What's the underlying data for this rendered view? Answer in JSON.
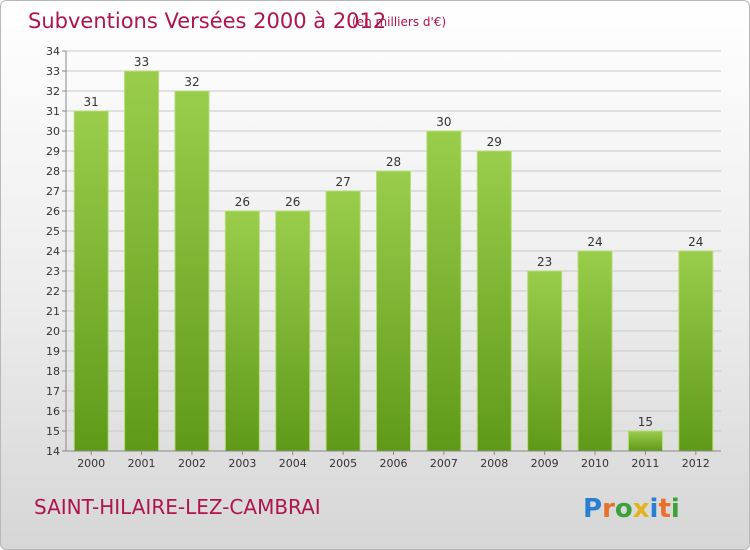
{
  "header": {
    "title": "Subventions Versées 2000 à 2012",
    "unit": "(en milliers d'€)"
  },
  "footer": {
    "place": "SAINT-HILAIRE-LEZ-CAMBRAI",
    "logo": "Proxiti"
  },
  "colors": {
    "title": "#b0134f",
    "bar_light": "#9acd4c",
    "bar_dark": "#5e9a18",
    "grid": "#c9c9c9"
  },
  "chart_data": {
    "type": "bar",
    "categories": [
      "2000",
      "2001",
      "2002",
      "2003",
      "2004",
      "2005",
      "2006",
      "2007",
      "2008",
      "2009",
      "2010",
      "2011",
      "2012"
    ],
    "values": [
      31,
      33,
      32,
      26,
      26,
      27,
      28,
      30,
      29,
      23,
      24,
      15,
      24
    ],
    "title": "Subventions Versées 2000 à 2012",
    "subtitle": "(en milliers d'€)",
    "xlabel": "",
    "ylabel": "",
    "ylim": [
      14,
      34
    ],
    "yticks": [
      14,
      15,
      16,
      17,
      18,
      19,
      20,
      21,
      22,
      23,
      24,
      25,
      26,
      27,
      28,
      29,
      30,
      31,
      32,
      33,
      34
    ],
    "grid": true,
    "data_labels": true
  }
}
